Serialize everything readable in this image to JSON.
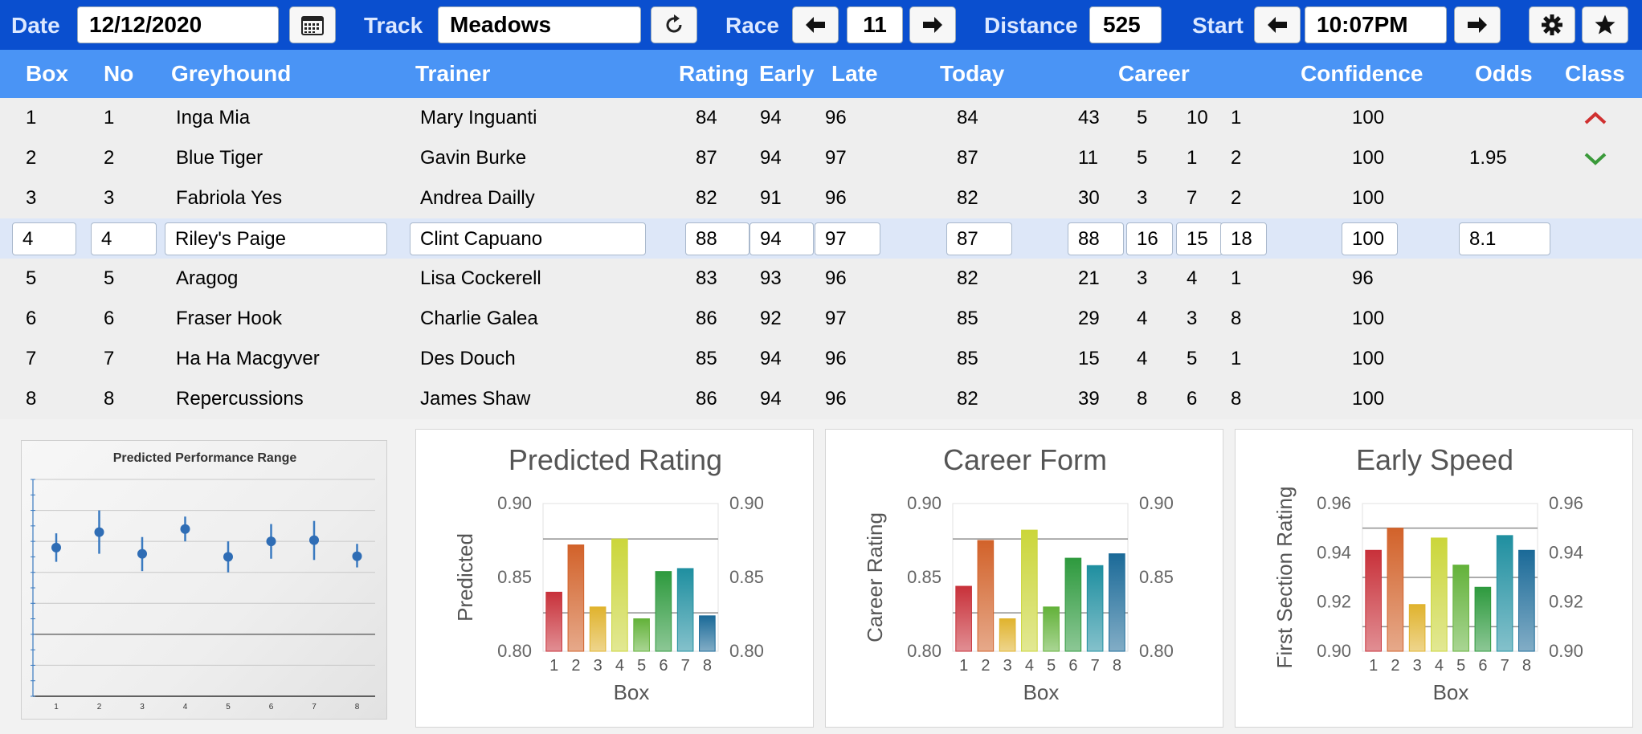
{
  "toolbar": {
    "date_label": "Date",
    "date_value": "12/12/2020",
    "track_label": "Track",
    "track_value": "Meadows",
    "race_label": "Race",
    "race_value": "11",
    "distance_label": "Distance",
    "distance_value": "525",
    "start_label": "Start",
    "start_value": "10:07PM",
    "icons": [
      "calendar-icon",
      "refresh-icon",
      "arrow-left-icon",
      "arrow-right-icon",
      "gear-icon",
      "star-icon"
    ]
  },
  "columns": {
    "box": "Box",
    "no": "No",
    "greyhound": "Greyhound",
    "trainer": "Trainer",
    "rating": "Rating",
    "early": "Early",
    "late": "Late",
    "today": "Today",
    "career": "Career",
    "confidence": "Confidence",
    "odds": "Odds",
    "class": "Class"
  },
  "rows": [
    {
      "box": "1",
      "no": "1",
      "greyhound": "Inga Mia",
      "trainer": "Mary Inguanti",
      "rating": "84",
      "early": "94",
      "late": "96",
      "today": "84",
      "c1": "43",
      "c2": "5",
      "c3": "10",
      "c4": "1",
      "confidence": "100",
      "odds": "",
      "class_icon": "chevron-up-icon"
    },
    {
      "box": "2",
      "no": "2",
      "greyhound": "Blue Tiger",
      "trainer": "Gavin Burke",
      "rating": "87",
      "early": "94",
      "late": "97",
      "today": "87",
      "c1": "11",
      "c2": "5",
      "c3": "1",
      "c4": "2",
      "confidence": "100",
      "odds": "1.95",
      "class_icon": "chevron-down-icon"
    },
    {
      "box": "3",
      "no": "3",
      "greyhound": "Fabriola Yes",
      "trainer": "Andrea Dailly",
      "rating": "82",
      "early": "91",
      "late": "96",
      "today": "82",
      "c1": "30",
      "c2": "3",
      "c3": "7",
      "c4": "2",
      "confidence": "100",
      "odds": "",
      "class_icon": ""
    },
    {
      "box": "4",
      "no": "4",
      "greyhound": "Riley's Paige",
      "trainer": "Clint Capuano",
      "rating": "88",
      "early": "94",
      "late": "97",
      "today": "87",
      "c1": "88",
      "c2": "16",
      "c3": "15",
      "c4": "18",
      "confidence": "100",
      "odds": "8.1",
      "class_icon": ""
    },
    {
      "box": "5",
      "no": "5",
      "greyhound": "Aragog",
      "trainer": "Lisa Cockerell",
      "rating": "83",
      "early": "93",
      "late": "96",
      "today": "82",
      "c1": "21",
      "c2": "3",
      "c3": "4",
      "c4": "1",
      "confidence": "96",
      "odds": "",
      "class_icon": ""
    },
    {
      "box": "6",
      "no": "6",
      "greyhound": "Fraser Hook",
      "trainer": "Charlie Galea",
      "rating": "86",
      "early": "92",
      "late": "97",
      "today": "85",
      "c1": "29",
      "c2": "4",
      "c3": "3",
      "c4": "8",
      "confidence": "100",
      "odds": "",
      "class_icon": ""
    },
    {
      "box": "7",
      "no": "7",
      "greyhound": "Ha Ha Macgyver",
      "trainer": "Des Douch",
      "rating": "85",
      "early": "94",
      "late": "96",
      "today": "85",
      "c1": "15",
      "c2": "4",
      "c3": "5",
      "c4": "1",
      "confidence": "100",
      "odds": "",
      "class_icon": ""
    },
    {
      "box": "8",
      "no": "8",
      "greyhound": "Repercussions",
      "trainer": "James Shaw",
      "rating": "86",
      "early": "94",
      "late": "96",
      "today": "82",
      "c1": "39",
      "c2": "8",
      "c3": "6",
      "c4": "8",
      "confidence": "100",
      "odds": "",
      "class_icon": ""
    }
  ],
  "selected_row": 3,
  "colors": {
    "toolbar": "#0a4fcf",
    "header": "#4a94f5",
    "selected_row": "#dde7f8",
    "class_up": "#d03030",
    "class_down": "#3a9a3a",
    "bars": [
      "#c8313a",
      "#d2622a",
      "#e0b32e",
      "#cbd63a",
      "#63b23a",
      "#2e9a3e",
      "#1f8fa0",
      "#1b6a98"
    ]
  },
  "chart_data": [
    {
      "type": "scatter",
      "title": "Predicted Performance Range",
      "x": [
        1,
        2,
        3,
        4,
        5,
        6,
        7,
        8
      ],
      "y": [
        0.84,
        0.865,
        0.83,
        0.87,
        0.825,
        0.85,
        0.852,
        0.826
      ],
      "low": [
        0.817,
        0.83,
        0.802,
        0.85,
        0.8,
        0.822,
        0.82,
        0.808
      ],
      "high": [
        0.863,
        0.9,
        0.857,
        0.89,
        0.85,
        0.878,
        0.883,
        0.846
      ],
      "xticks": [
        "1",
        "2",
        "3",
        "4",
        "5",
        "6",
        "7",
        "8"
      ],
      "ylim": [
        0.6,
        0.95
      ],
      "grid": true
    },
    {
      "type": "bar",
      "title": "Predicted Rating",
      "categories": [
        "1",
        "2",
        "3",
        "4",
        "5",
        "6",
        "7",
        "8"
      ],
      "values": [
        0.84,
        0.872,
        0.83,
        0.876,
        0.822,
        0.854,
        0.856,
        0.824
      ],
      "xlabel": "Box",
      "ylabel": "Predicted",
      "ylim": [
        0.8,
        0.9
      ],
      "yticks": [
        "0.80",
        "0.85",
        "0.90"
      ],
      "reference_lines": [
        0.876,
        0.826
      ]
    },
    {
      "type": "bar",
      "title": "Career Form",
      "categories": [
        "1",
        "2",
        "3",
        "4",
        "5",
        "6",
        "7",
        "8"
      ],
      "values": [
        0.844,
        0.875,
        0.822,
        0.882,
        0.83,
        0.863,
        0.858,
        0.866
      ],
      "xlabel": "Box",
      "ylabel": "Career Rating",
      "ylim": [
        0.8,
        0.9
      ],
      "yticks": [
        "0.80",
        "0.85",
        "0.90"
      ],
      "reference_lines": [
        0.876,
        0.826
      ]
    },
    {
      "type": "bar",
      "title": "Early Speed",
      "categories": [
        "1",
        "2",
        "3",
        "4",
        "5",
        "6",
        "7",
        "8"
      ],
      "values": [
        0.941,
        0.95,
        0.919,
        0.946,
        0.935,
        0.926,
        0.947,
        0.941
      ],
      "xlabel": "Box",
      "ylabel": "First Section Rating",
      "ylim": [
        0.9,
        0.96
      ],
      "yticks": [
        "0.90",
        "0.92",
        "0.94",
        "0.96"
      ],
      "reference_lines": [
        0.95,
        0.93,
        0.91
      ]
    }
  ]
}
